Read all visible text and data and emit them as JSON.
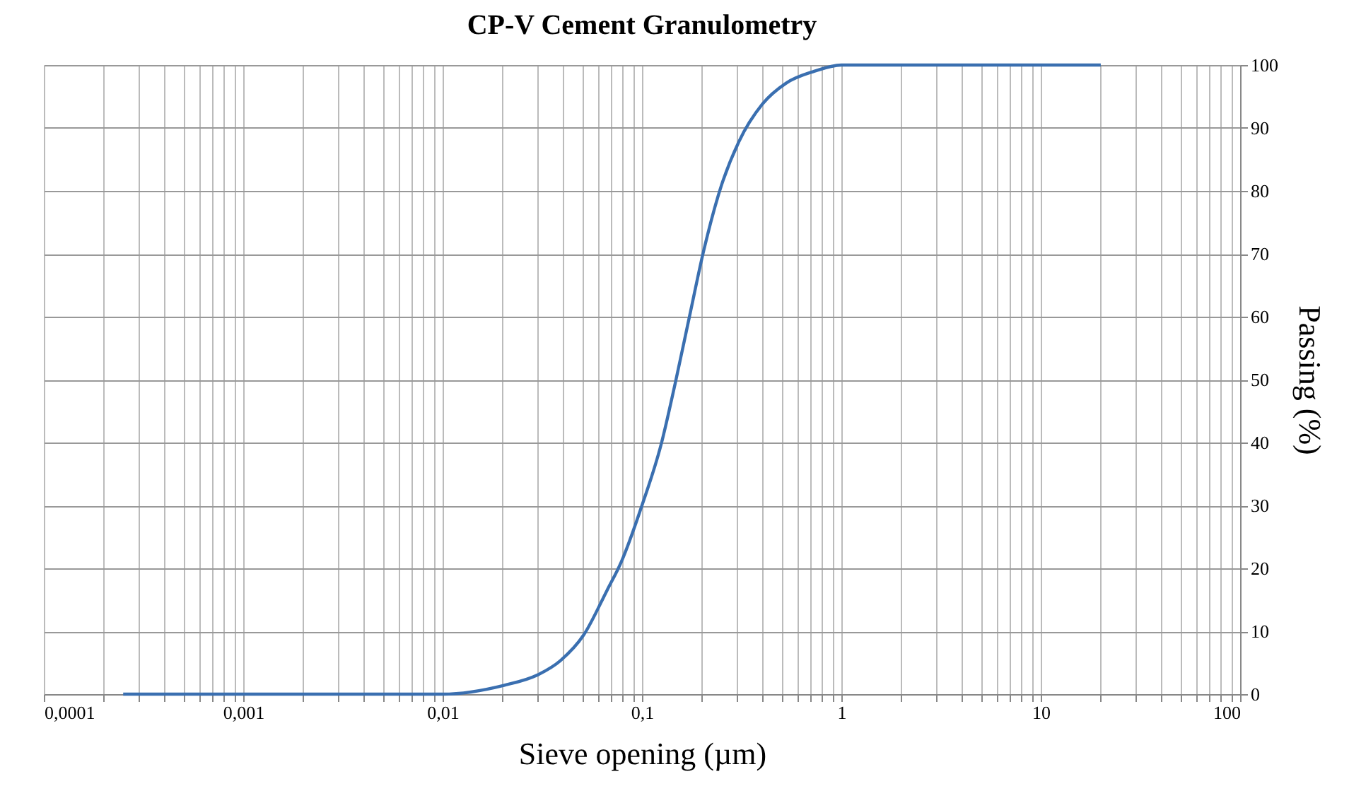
{
  "chart_data": {
    "type": "line",
    "title": "CP-V Cement Granulometry",
    "xlabel": "Sieve opening (µm)",
    "ylabel": "Passing (%)",
    "log": "x",
    "grid": true,
    "legend": false,
    "marker": "none",
    "line_style": "solid",
    "xlim": [
      0.0001,
      100
    ],
    "ylim": [
      0,
      100
    ],
    "yticks": [
      0,
      10,
      20,
      30,
      40,
      50,
      60,
      70,
      80,
      90,
      100
    ],
    "xticks": [
      {
        "value": 0.0001,
        "label": "0,0001"
      },
      {
        "value": 0.0002,
        "label": null
      },
      {
        "value": 0.0003,
        "label": null
      },
      {
        "value": 0.0004,
        "label": null
      },
      {
        "value": 0.0005,
        "label": null
      },
      {
        "value": 0.0006,
        "label": null
      },
      {
        "value": 0.0007,
        "label": null
      },
      {
        "value": 0.0008,
        "label": null
      },
      {
        "value": 0.0009,
        "label": null
      },
      {
        "value": 0.001,
        "label": "0,001"
      },
      {
        "value": 0.002,
        "label": null
      },
      {
        "value": 0.003,
        "label": null
      },
      {
        "value": 0.004,
        "label": null
      },
      {
        "value": 0.005,
        "label": null
      },
      {
        "value": 0.006,
        "label": null
      },
      {
        "value": 0.007,
        "label": null
      },
      {
        "value": 0.008,
        "label": null
      },
      {
        "value": 0.009,
        "label": null
      },
      {
        "value": 0.01,
        "label": "0,01"
      },
      {
        "value": 0.02,
        "label": null
      },
      {
        "value": 0.03,
        "label": null
      },
      {
        "value": 0.04,
        "label": null
      },
      {
        "value": 0.05,
        "label": null
      },
      {
        "value": 0.06,
        "label": null
      },
      {
        "value": 0.07,
        "label": null
      },
      {
        "value": 0.08,
        "label": null
      },
      {
        "value": 0.09,
        "label": null
      },
      {
        "value": 0.1,
        "label": "0,1"
      },
      {
        "value": 0.2,
        "label": null
      },
      {
        "value": 0.3,
        "label": null
      },
      {
        "value": 0.4,
        "label": null
      },
      {
        "value": 0.5,
        "label": null
      },
      {
        "value": 0.6,
        "label": null
      },
      {
        "value": 0.7,
        "label": null
      },
      {
        "value": 0.8,
        "label": null
      },
      {
        "value": 0.9,
        "label": null
      },
      {
        "value": 1,
        "label": "1"
      },
      {
        "value": 2,
        "label": null
      },
      {
        "value": 3,
        "label": null
      },
      {
        "value": 4,
        "label": null
      },
      {
        "value": 5,
        "label": null
      },
      {
        "value": 6,
        "label": null
      },
      {
        "value": 7,
        "label": null
      },
      {
        "value": 8,
        "label": null
      },
      {
        "value": 9,
        "label": null
      },
      {
        "value": 10,
        "label": "10"
      },
      {
        "value": 20,
        "label": null
      },
      {
        "value": 30,
        "label": null
      },
      {
        "value": 40,
        "label": null
      },
      {
        "value": 50,
        "label": null
      },
      {
        "value": 60,
        "label": null
      },
      {
        "value": 70,
        "label": null
      },
      {
        "value": 80,
        "label": null
      },
      {
        "value": 90,
        "label": null
      },
      {
        "value": 100,
        "label": "100"
      }
    ],
    "series": [
      {
        "color": "#3a6fb0",
        "x": [
          0.00025,
          0.001,
          0.005,
          0.01,
          0.0203,
          0.0297,
          0.0389,
          0.051,
          0.0668,
          0.0787,
          0.1,
          0.125,
          0.147,
          0.173,
          0.204,
          0.247,
          0.306,
          0.402,
          0.527,
          0.73,
          1,
          3,
          20
        ],
        "values": [
          0,
          0,
          0,
          0,
          1.4,
          3,
          5.3,
          9.4,
          16.5,
          21,
          30,
          39.8,
          49.5,
          60,
          70.5,
          80.3,
          87.8,
          93.8,
          97.1,
          99,
          100,
          100,
          100
        ]
      }
    ]
  }
}
